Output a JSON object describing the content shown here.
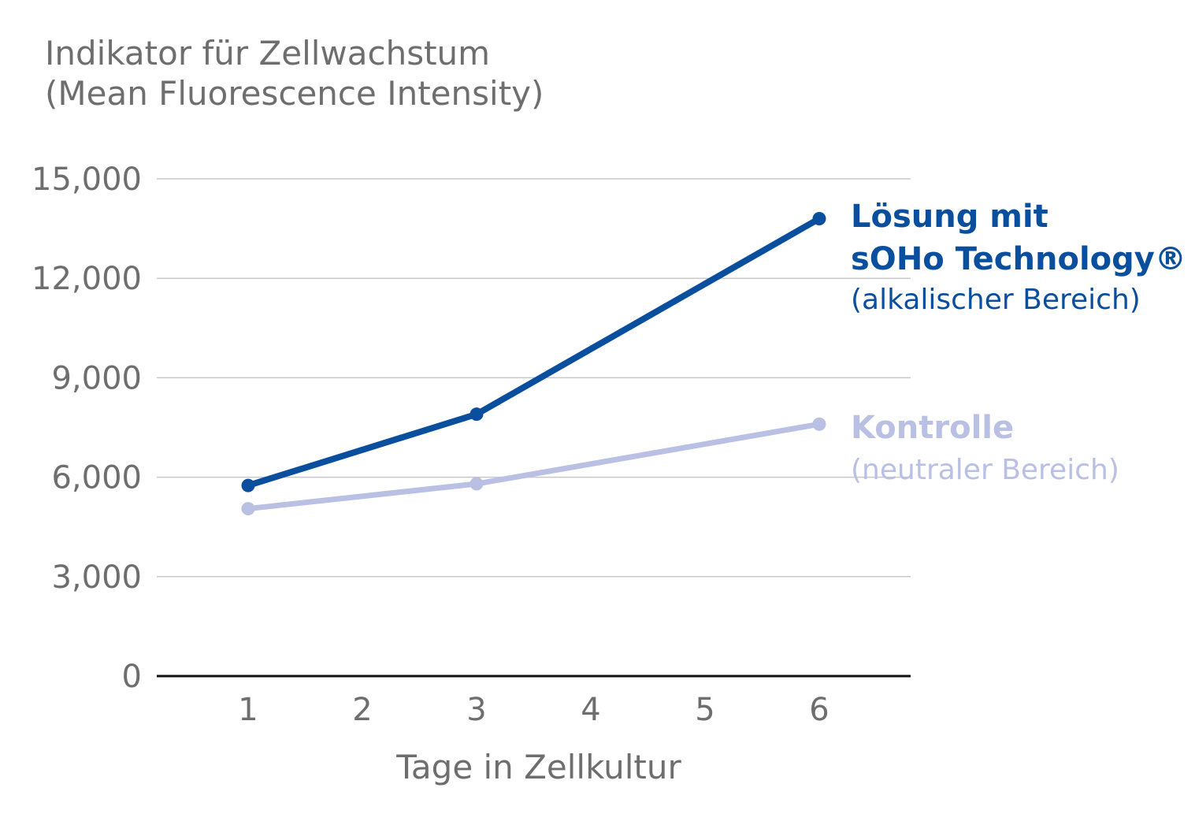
{
  "chart_data": {
    "type": "line",
    "ylabel_lines": [
      "Indikator für Zellwachstum",
      "(Mean Fluorescence Intensity)"
    ],
    "xlabel": "Tage in Zellkultur",
    "x_ticks": [
      "1",
      "2",
      "3",
      "4",
      "5",
      "6"
    ],
    "y_ticks": [
      "15,000",
      "12,000",
      "9,000",
      "6,000",
      "3,000",
      "0"
    ],
    "y_tick_values": [
      15000,
      12000,
      9000,
      6000,
      3000,
      0
    ],
    "ylim": [
      0,
      15000
    ],
    "xlim": [
      0.2,
      6.8
    ],
    "grid": true,
    "series": [
      {
        "label_lines": [
          "Lösung mit",
          "sOHo Technology®"
        ],
        "sublabel": "(alkalischer Bereich)",
        "color": "#0a4f9e",
        "x": [
          1,
          3,
          6
        ],
        "y": [
          5750,
          7900,
          13800
        ]
      },
      {
        "label_lines": [
          "Kontrolle"
        ],
        "sublabel": "(neutraler Bereich)",
        "color": "#b9c0e4",
        "x": [
          1,
          3,
          6
        ],
        "y": [
          5050,
          5800,
          7600
        ]
      }
    ]
  }
}
